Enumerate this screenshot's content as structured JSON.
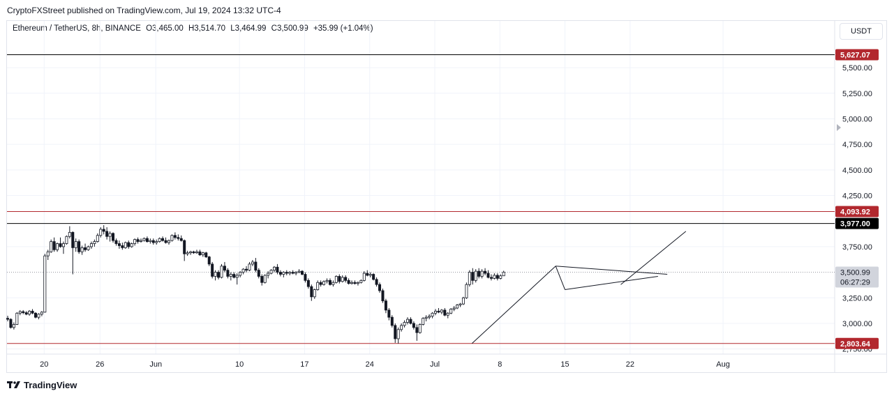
{
  "publisher_line": "CryptoFXStreet published on TradingView.com, Jul 19, 2024 13:32 UTC-4",
  "legend": {
    "symbol": "Ethereum / TetherUS, 8h, BINANCE",
    "open": "O3,465.00",
    "high": "H3,514.70",
    "low": "L3,464.99",
    "close": "C3,500.99",
    "change": "+35.99 (+1.04%)"
  },
  "currency_button": "USDT",
  "footer": {
    "brand": "TradingView"
  },
  "colors": {
    "up": "#ffffff",
    "down": "#131722",
    "resistance": "#b2282e",
    "support_black": "#000000",
    "grid": "#f0f3fa"
  },
  "chart_data": {
    "type": "candlestick",
    "title": "",
    "xlabel": "",
    "ylabel": "",
    "ylim": [
      2700,
      5780
    ],
    "y_ticks": [
      "5,500.00",
      "5,250.00",
      "5,000.00",
      "4,750.00",
      "4,500.00",
      "4,250.00",
      "3,750.00",
      "3,250.00",
      "3,000.00",
      "2,750.00"
    ],
    "y_tick_values": [
      5500,
      5250,
      5000,
      4750,
      4500,
      4250,
      3750,
      3250,
      3000,
      2750
    ],
    "x_ticks": [
      {
        "label": "20",
        "date": "2024-05-20"
      },
      {
        "label": "26",
        "date": "2024-05-26"
      },
      {
        "label": "Jun",
        "date": "2024-06-01"
      },
      {
        "label": "10",
        "date": "2024-06-10"
      },
      {
        "label": "17",
        "date": "2024-06-17"
      },
      {
        "label": "24",
        "date": "2024-06-24"
      },
      {
        "label": "Jul",
        "date": "2024-07-01"
      },
      {
        "label": "8",
        "date": "2024-07-08"
      },
      {
        "label": "15",
        "date": "2024-07-15"
      },
      {
        "label": "22",
        "date": "2024-07-22"
      },
      {
        "label": "Aug",
        "date": "2024-08-01"
      }
    ],
    "x_range": [
      "2024-05-16",
      "2024-08-13"
    ],
    "price_lines": [
      {
        "value": 5627.07,
        "label": "5,627.07",
        "color": "#b2282e",
        "line_color": "#000000"
      },
      {
        "value": 4093.92,
        "label": "4,093.92",
        "color": "#b2282e",
        "line_color": "#b2282e"
      },
      {
        "value": 3977.0,
        "label": "3,977.00",
        "color": "#000000",
        "line_color": "#000000"
      },
      {
        "value": 2803.64,
        "label": "2,803.64",
        "color": "#b2282e",
        "line_color": "#b2282e"
      }
    ],
    "last_price": {
      "value": 3500.99,
      "label": "3,500.99",
      "countdown": "06:27:29"
    },
    "drawings": [
      {
        "name": "pole",
        "points": [
          [
            "2024-07-05",
            2803.64
          ],
          [
            "2024-07-14",
            3560
          ]
        ]
      },
      {
        "name": "pole-left",
        "points": [
          [
            "2024-07-14",
            3560
          ],
          [
            "2024-07-15",
            3330
          ]
        ]
      },
      {
        "name": "pennant-top",
        "points": [
          [
            "2024-07-14",
            3560
          ],
          [
            "2024-07-26",
            3480
          ]
        ]
      },
      {
        "name": "pennant-bottom",
        "points": [
          [
            "2024-07-15",
            3330
          ],
          [
            "2024-07-25",
            3460
          ]
        ]
      },
      {
        "name": "breakout-projection",
        "points": [
          [
            "2024-07-21",
            3380
          ],
          [
            "2024-07-28",
            3900
          ]
        ]
      }
    ],
    "ohlc_8h": [
      [
        3050,
        3075,
        3020,
        3040
      ],
      [
        3040,
        3050,
        2950,
        2960
      ],
      [
        2960,
        3010,
        2940,
        2990
      ],
      [
        2990,
        3110,
        2985,
        3100
      ],
      [
        3100,
        3130,
        3080,
        3115
      ],
      [
        3115,
        3130,
        3090,
        3105
      ],
      [
        3105,
        3120,
        3080,
        3090
      ],
      [
        3090,
        3130,
        3075,
        3120
      ],
      [
        3120,
        3140,
        3090,
        3100
      ],
      [
        3100,
        3110,
        3050,
        3060
      ],
      [
        3060,
        3100,
        3040,
        3090
      ],
      [
        3090,
        3120,
        3070,
        3110
      ],
      [
        3110,
        3680,
        3105,
        3660
      ],
      [
        3660,
        3720,
        3620,
        3700
      ],
      [
        3700,
        3820,
        3690,
        3800
      ],
      [
        3800,
        3840,
        3700,
        3720
      ],
      [
        3720,
        3790,
        3700,
        3780
      ],
      [
        3780,
        3840,
        3740,
        3750
      ],
      [
        3750,
        3800,
        3680,
        3780
      ],
      [
        3780,
        3860,
        3770,
        3850
      ],
      [
        3850,
        3950,
        3830,
        3890
      ],
      [
        3890,
        3900,
        3480,
        3740
      ],
      [
        3740,
        3830,
        3700,
        3800
      ],
      [
        3800,
        3820,
        3680,
        3700
      ],
      [
        3700,
        3760,
        3670,
        3740
      ],
      [
        3740,
        3780,
        3700,
        3720
      ],
      [
        3720,
        3760,
        3710,
        3750
      ],
      [
        3750,
        3800,
        3730,
        3780
      ],
      [
        3780,
        3820,
        3750,
        3800
      ],
      [
        3800,
        3880,
        3790,
        3860
      ],
      [
        3860,
        3940,
        3840,
        3920
      ],
      [
        3920,
        3960,
        3870,
        3900
      ],
      [
        3900,
        3940,
        3820,
        3850
      ],
      [
        3850,
        3900,
        3800,
        3880
      ],
      [
        3880,
        3890,
        3790,
        3810
      ],
      [
        3810,
        3830,
        3760,
        3780
      ],
      [
        3780,
        3810,
        3730,
        3760
      ],
      [
        3760,
        3790,
        3720,
        3740
      ],
      [
        3740,
        3800,
        3730,
        3790
      ],
      [
        3790,
        3810,
        3730,
        3750
      ],
      [
        3750,
        3790,
        3740,
        3780
      ],
      [
        3780,
        3830,
        3760,
        3820
      ],
      [
        3820,
        3840,
        3780,
        3800
      ],
      [
        3800,
        3830,
        3790,
        3810
      ],
      [
        3810,
        3840,
        3800,
        3830
      ],
      [
        3830,
        3850,
        3790,
        3800
      ],
      [
        3800,
        3830,
        3780,
        3810
      ],
      [
        3810,
        3830,
        3770,
        3790
      ],
      [
        3790,
        3820,
        3770,
        3800
      ],
      [
        3800,
        3840,
        3790,
        3830
      ],
      [
        3830,
        3850,
        3800,
        3810
      ],
      [
        3810,
        3840,
        3780,
        3790
      ],
      [
        3790,
        3820,
        3770,
        3810
      ],
      [
        3810,
        3870,
        3800,
        3860
      ],
      [
        3860,
        3890,
        3820,
        3840
      ],
      [
        3840,
        3870,
        3810,
        3830
      ],
      [
        3830,
        3860,
        3800,
        3810
      ],
      [
        3810,
        3820,
        3610,
        3680
      ],
      [
        3680,
        3710,
        3660,
        3690
      ],
      [
        3690,
        3710,
        3670,
        3700
      ],
      [
        3700,
        3710,
        3680,
        3690
      ],
      [
        3690,
        3720,
        3680,
        3700
      ],
      [
        3700,
        3720,
        3660,
        3670
      ],
      [
        3670,
        3700,
        3650,
        3690
      ],
      [
        3690,
        3700,
        3640,
        3650
      ],
      [
        3650,
        3660,
        3560,
        3580
      ],
      [
        3580,
        3600,
        3440,
        3460
      ],
      [
        3460,
        3520,
        3420,
        3500
      ],
      [
        3500,
        3520,
        3430,
        3450
      ],
      [
        3450,
        3580,
        3440,
        3560
      ],
      [
        3560,
        3600,
        3500,
        3520
      ],
      [
        3520,
        3540,
        3440,
        3460
      ],
      [
        3460,
        3500,
        3420,
        3480
      ],
      [
        3480,
        3500,
        3440,
        3450
      ],
      [
        3450,
        3490,
        3380,
        3470
      ],
      [
        3470,
        3510,
        3450,
        3500
      ],
      [
        3500,
        3540,
        3480,
        3530
      ],
      [
        3530,
        3560,
        3500,
        3520
      ],
      [
        3520,
        3600,
        3510,
        3580
      ],
      [
        3580,
        3620,
        3560,
        3600
      ],
      [
        3600,
        3640,
        3500,
        3520
      ],
      [
        3520,
        3540,
        3440,
        3460
      ],
      [
        3460,
        3480,
        3370,
        3400
      ],
      [
        3400,
        3480,
        3390,
        3470
      ],
      [
        3470,
        3510,
        3440,
        3490
      ],
      [
        3490,
        3530,
        3480,
        3520
      ],
      [
        3520,
        3560,
        3500,
        3550
      ],
      [
        3550,
        3580,
        3480,
        3500
      ],
      [
        3500,
        3520,
        3460,
        3480
      ],
      [
        3480,
        3510,
        3450,
        3500
      ],
      [
        3500,
        3520,
        3470,
        3490
      ],
      [
        3490,
        3510,
        3470,
        3500
      ],
      [
        3500,
        3520,
        3480,
        3490
      ],
      [
        3490,
        3510,
        3470,
        3500
      ],
      [
        3500,
        3530,
        3490,
        3510
      ],
      [
        3510,
        3520,
        3470,
        3480
      ],
      [
        3480,
        3500,
        3400,
        3420
      ],
      [
        3420,
        3440,
        3340,
        3360
      ],
      [
        3360,
        3380,
        3220,
        3260
      ],
      [
        3260,
        3340,
        3240,
        3330
      ],
      [
        3330,
        3420,
        3320,
        3400
      ],
      [
        3400,
        3420,
        3360,
        3380
      ],
      [
        3380,
        3420,
        3370,
        3410
      ],
      [
        3410,
        3440,
        3390,
        3420
      ],
      [
        3420,
        3440,
        3370,
        3380
      ],
      [
        3380,
        3420,
        3360,
        3400
      ],
      [
        3400,
        3470,
        3390,
        3460
      ],
      [
        3460,
        3480,
        3390,
        3410
      ],
      [
        3410,
        3470,
        3400,
        3450
      ],
      [
        3450,
        3470,
        3400,
        3420
      ],
      [
        3420,
        3440,
        3380,
        3390
      ],
      [
        3390,
        3420,
        3380,
        3400
      ],
      [
        3400,
        3420,
        3380,
        3390
      ],
      [
        3390,
        3410,
        3370,
        3400
      ],
      [
        3400,
        3430,
        3390,
        3420
      ],
      [
        3420,
        3510,
        3410,
        3490
      ],
      [
        3490,
        3520,
        3460,
        3470
      ],
      [
        3470,
        3500,
        3450,
        3480
      ],
      [
        3480,
        3490,
        3420,
        3430
      ],
      [
        3430,
        3450,
        3360,
        3380
      ],
      [
        3380,
        3400,
        3300,
        3320
      ],
      [
        3320,
        3340,
        3200,
        3220
      ],
      [
        3220,
        3240,
        3100,
        3130
      ],
      [
        3130,
        3150,
        3030,
        3060
      ],
      [
        3060,
        3080,
        2960,
        2980
      ],
      [
        2980,
        3000,
        2810,
        2850
      ],
      [
        2850,
        2960,
        2803,
        2940
      ],
      [
        2940,
        3000,
        2920,
        2980
      ],
      [
        2980,
        3030,
        2960,
        3010
      ],
      [
        3010,
        3060,
        2990,
        3040
      ],
      [
        3040,
        3060,
        2990,
        3000
      ],
      [
        3000,
        3020,
        2940,
        2960
      ],
      [
        2960,
        2990,
        2830,
        2910
      ],
      [
        2910,
        3000,
        2900,
        2990
      ],
      [
        2990,
        3060,
        2980,
        3050
      ],
      [
        3050,
        3080,
        3020,
        3060
      ],
      [
        3060,
        3090,
        3040,
        3070
      ],
      [
        3070,
        3110,
        3050,
        3100
      ],
      [
        3100,
        3140,
        3080,
        3120
      ],
      [
        3120,
        3150,
        3100,
        3110
      ],
      [
        3110,
        3140,
        3090,
        3130
      ],
      [
        3130,
        3150,
        3070,
        3080
      ],
      [
        3080,
        3110,
        3050,
        3100
      ],
      [
        3100,
        3150,
        3090,
        3140
      ],
      [
        3140,
        3170,
        3120,
        3150
      ],
      [
        3150,
        3190,
        3140,
        3180
      ],
      [
        3180,
        3200,
        3160,
        3190
      ],
      [
        3190,
        3260,
        3180,
        3250
      ],
      [
        3250,
        3400,
        3240,
        3380
      ],
      [
        3380,
        3520,
        3360,
        3500
      ],
      [
        3500,
        3540,
        3380,
        3420
      ],
      [
        3420,
        3530,
        3400,
        3510
      ],
      [
        3510,
        3540,
        3440,
        3460
      ],
      [
        3460,
        3530,
        3440,
        3510
      ],
      [
        3510,
        3540,
        3470,
        3490
      ],
      [
        3490,
        3520,
        3440,
        3450
      ],
      [
        3450,
        3480,
        3420,
        3440
      ],
      [
        3440,
        3490,
        3430,
        3470
      ],
      [
        3470,
        3490,
        3420,
        3440
      ],
      [
        3440,
        3480,
        3430,
        3465
      ],
      [
        3465,
        3514.7,
        3464.99,
        3500.99
      ]
    ]
  }
}
